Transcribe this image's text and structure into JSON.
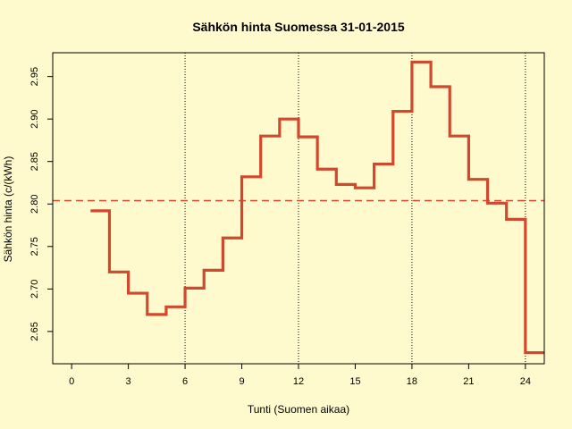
{
  "chart_data": {
    "type": "line",
    "style": "step",
    "title": "Sähkön hinta Suomessa 31-01-2015",
    "xlabel": "Tunti (Suomen aikaa)",
    "ylabel": "Sähkön hinta (c/(kWh)",
    "xlim": [
      -1,
      25
    ],
    "ylim": [
      2.612,
      2.978
    ],
    "x_ticks": [
      0,
      3,
      6,
      9,
      12,
      15,
      18,
      21,
      24
    ],
    "y_ticks": [
      2.65,
      2.7,
      2.75,
      2.8,
      2.85,
      2.9,
      2.95
    ],
    "vertical_reference_lines": [
      6,
      12,
      18,
      24
    ],
    "mean_line": 2.804,
    "grid": false,
    "series": [
      {
        "color": "#d0482e",
        "x": [
          1,
          2,
          3,
          4,
          5,
          6,
          7,
          8,
          9,
          10,
          11,
          12,
          13,
          14,
          15,
          16,
          17,
          18,
          19,
          20,
          21,
          22,
          23,
          24,
          25
        ],
        "values": [
          2.792,
          2.72,
          2.695,
          2.67,
          2.679,
          2.701,
          2.722,
          2.76,
          2.832,
          2.88,
          2.9,
          2.879,
          2.841,
          2.823,
          2.819,
          2.847,
          2.909,
          2.967,
          2.938,
          2.88,
          2.829,
          2.801,
          2.782,
          2.625,
          2.625
        ]
      }
    ]
  }
}
